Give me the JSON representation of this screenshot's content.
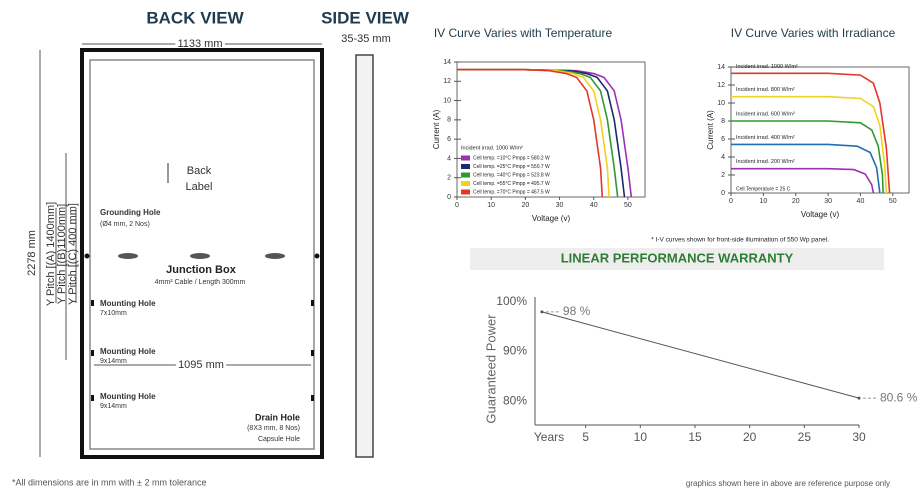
{
  "diagram": {
    "back_title": "BACK VIEW",
    "side_title": "SIDE VIEW",
    "width": "1133 mm",
    "side_width": "35-35 mm",
    "height": "2278 mm",
    "pitch_a": "Y Pitch [(A) 1400mm]",
    "pitch_b": "Y Pitch [(B)1100mm]",
    "pitch_c": "Y Pitch [(C) 400 mm]",
    "back_label": [
      "Back",
      "Label"
    ],
    "grounding_title": "Grounding Hole",
    "grounding_detail": "(Ø4 mm, 2 Nos)",
    "junction_title": "Junction Box",
    "junction_detail": "4mm² Cable / Length 300mm",
    "mounting": [
      {
        "title": "Mounting Hole",
        "size": "7x10mm"
      },
      {
        "title": "Mounting Hole",
        "size": "9x14mm"
      },
      {
        "title": "Mounting Hole",
        "size": "9x14mm"
      }
    ],
    "inner_width": "1095 mm",
    "drain_title": "Drain Hole",
    "drain_detail": "(8X3 mm, 8 Nos)",
    "capsule": "Capsule Hole",
    "footnote": "*All dimensions are in mm with ± 2 mm tolerance"
  },
  "notes": {
    "iv_note": "* I-V curves shown for front-side illumination of  550 Wp panel.",
    "reference": "graphics shown here in above are reference purpose only"
  },
  "chart_data": [
    {
      "type": "line",
      "title": "IV Curve Varies with Temperature",
      "x_label": "Voltage (v)",
      "y_label": "Current (A)",
      "annotation": "Incident irrad. 1000 W/m²",
      "xlim": [
        0,
        55
      ],
      "xticks": [
        0,
        10,
        20,
        30,
        40,
        50
      ],
      "ylim": [
        0,
        14
      ],
      "yticks": [
        0,
        2,
        4,
        6,
        8,
        10,
        12,
        14
      ],
      "series": [
        {
          "name": "Cell temp. =10°C Pmpp = 580.2 W",
          "color": "#9b30b5",
          "x": [
            0,
            20,
            35,
            40,
            43,
            46,
            48,
            50,
            51
          ],
          "values": [
            13.2,
            13.2,
            13.1,
            12.8,
            12.4,
            11,
            8,
            3,
            0
          ]
        },
        {
          "name": "Cell temp. =25°C Pmpp = 550.7 W",
          "color": "#1a2a6c",
          "x": [
            0,
            20,
            33,
            38,
            41,
            44,
            46,
            48,
            49
          ],
          "values": [
            13.2,
            13.2,
            13.1,
            12.8,
            12.4,
            11,
            8,
            3,
            0
          ]
        },
        {
          "name": "Cell temp. =40°C Pmpp = 523.8 W",
          "color": "#2e9a2e",
          "x": [
            0,
            20,
            31,
            36,
            39,
            42,
            44,
            46,
            47
          ],
          "values": [
            13.2,
            13.2,
            13.1,
            12.8,
            12.4,
            11,
            8,
            3,
            0
          ]
        },
        {
          "name": "Cell temp. =55°C Pmpp = 495.7 W",
          "color": "#f2d21b",
          "x": [
            0,
            20,
            29,
            34,
            37,
            40,
            42,
            44,
            44.5
          ],
          "values": [
            13.2,
            13.2,
            13.1,
            12.8,
            12.4,
            11,
            8,
            3,
            0
          ]
        },
        {
          "name": "Cell temp. =70°C Pmpp = 467.5 W",
          "color": "#e2372a",
          "x": [
            0,
            20,
            27,
            32,
            35,
            38,
            40,
            42,
            42.5
          ],
          "values": [
            13.2,
            13.2,
            13.1,
            12.8,
            12.4,
            11,
            8,
            3,
            0
          ]
        }
      ]
    },
    {
      "type": "line",
      "title": "IV Curve Varies with Irradiance",
      "x_label": "Voltage (v)",
      "y_label": "Current (A)",
      "annotation": "Cell Temperature = 25 C",
      "xlim": [
        0,
        55
      ],
      "xticks": [
        0,
        10,
        20,
        30,
        40,
        50
      ],
      "ylim": [
        0,
        14
      ],
      "yticks": [
        0,
        2,
        4,
        6,
        8,
        10,
        12,
        14
      ],
      "series": [
        {
          "name": "Incident irrad. 1000 W/m²",
          "color": "#e2372a",
          "x": [
            0,
            30,
            40,
            44,
            46,
            48,
            49
          ],
          "values": [
            13.3,
            13.3,
            13.1,
            12.2,
            10,
            5,
            0
          ]
        },
        {
          "name": "Incident irrad. 800 W/m²",
          "color": "#f2d21b",
          "x": [
            0,
            30,
            40,
            44,
            46,
            47.5,
            48
          ],
          "values": [
            10.7,
            10.7,
            10.5,
            9.6,
            7.5,
            3,
            0
          ]
        },
        {
          "name": "Incident irrad. 600 W/m²",
          "color": "#2e9a2e",
          "x": [
            0,
            30,
            40,
            43.5,
            45.5,
            46.8,
            47
          ],
          "values": [
            8,
            8,
            7.8,
            7,
            5.2,
            2,
            0
          ]
        },
        {
          "name": "Incident irrad. 400 W/m²",
          "color": "#1f6fb5",
          "x": [
            0,
            30,
            39,
            43,
            45,
            46
          ],
          "values": [
            5.4,
            5.4,
            5.2,
            4.5,
            2.8,
            0
          ]
        },
        {
          "name": "Incident irrad. 200 W/m²",
          "color": "#9b30b5",
          "x": [
            0,
            30,
            38,
            41.5,
            43.5,
            44
          ],
          "values": [
            2.7,
            2.7,
            2.6,
            2.1,
            0.9,
            0
          ]
        }
      ]
    },
    {
      "type": "line",
      "title": "LINEAR PERFORMANCE WARRANTY",
      "x_label": "Years",
      "y_label": "Guaranteed Power",
      "xlim": [
        0,
        30
      ],
      "xticks": [
        5,
        10,
        15,
        20,
        25,
        30
      ],
      "ylim": [
        77,
        100
      ],
      "yticks": [
        {
          "value": 80,
          "label": "80%"
        },
        {
          "value": 90,
          "label": "90%"
        },
        {
          "value": 100,
          "label": "100%"
        }
      ],
      "series": [
        {
          "color": "#555555",
          "x": [
            1,
            30
          ],
          "values": [
            98,
            80.6
          ],
          "value_labels": [
            "98 %",
            "80.6 %"
          ]
        }
      ]
    }
  ]
}
